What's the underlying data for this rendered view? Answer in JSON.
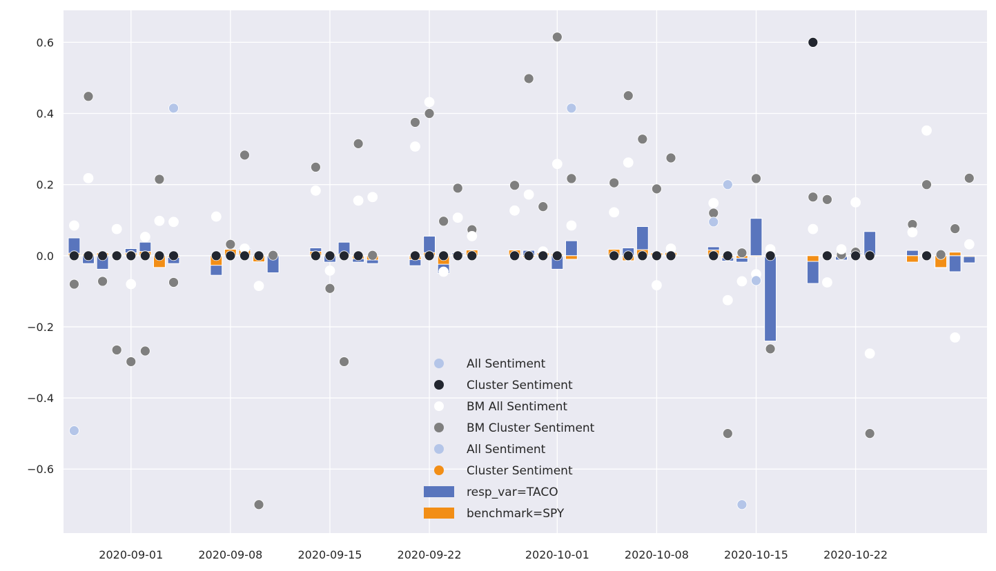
{
  "chart_data": {
    "type": "bar+scatter",
    "title": "",
    "xlabel": "",
    "ylabel": "",
    "ylim": [
      -0.78,
      0.69
    ],
    "xlim": [
      "2020-08-27T06:00",
      "2020-10-31T06:00"
    ],
    "grid": true,
    "legend_position": "lower-center",
    "y_ticks": [
      -0.6,
      -0.4,
      -0.2,
      0.0,
      0.2,
      0.4,
      0.6
    ],
    "y_tick_labels": [
      "−0.6",
      "−0.4",
      "−0.2",
      "0.0",
      "0.2",
      "0.4",
      "0.6"
    ],
    "x_ticks": [
      "2020-09-01",
      "2020-09-08",
      "2020-09-15",
      "2020-09-22",
      "2020-10-01",
      "2020-10-08",
      "2020-10-15",
      "2020-10-22"
    ],
    "colors": {
      "background": "#eaeaf2",
      "grid": "#ffffff",
      "all_sentiment": "#b4c5e8",
      "cluster_sentiment": "#22262f",
      "bm_all_sentiment": "#ffffff",
      "bm_cluster_sentiment": "#7f7f7f",
      "cluster_sentiment_2": "#f28e16",
      "taco_bar": "#5975bd",
      "spy_bar": "#f28e16"
    },
    "legend": [
      {
        "label": "All Sentiment",
        "kind": "dot",
        "color": "#b4c5e8"
      },
      {
        "label": "Cluster Sentiment",
        "kind": "dot",
        "color": "#22262f"
      },
      {
        "label": "BM All Sentiment",
        "kind": "dot",
        "color": "#ffffff"
      },
      {
        "label": "BM Cluster Sentiment",
        "kind": "dot",
        "color": "#7f7f7f"
      },
      {
        "label": "All Sentiment",
        "kind": "dot",
        "color": "#b4c5e8"
      },
      {
        "label": "Cluster Sentiment",
        "kind": "dot",
        "color": "#f28e16"
      },
      {
        "label": "resp_var=TACO",
        "kind": "bar",
        "color": "#5975bd"
      },
      {
        "label": "benchmark=SPY",
        "kind": "bar",
        "color": "#f28e16"
      }
    ],
    "bars_taco": [
      {
        "x": "2020-08-28",
        "y": 0.05
      },
      {
        "x": "2020-08-29",
        "y": -0.022
      },
      {
        "x": "2020-08-30",
        "y": -0.038
      },
      {
        "x": "2020-08-31",
        "y": 0.002
      },
      {
        "x": "2020-09-01",
        "y": 0.02
      },
      {
        "x": "2020-09-02",
        "y": 0.038
      },
      {
        "x": "2020-09-03",
        "y": 0.002
      },
      {
        "x": "2020-09-04",
        "y": -0.022
      },
      {
        "x": "2020-09-07",
        "y": -0.055
      },
      {
        "x": "2020-09-08",
        "y": 0.002
      },
      {
        "x": "2020-09-09",
        "y": 0.02
      },
      {
        "x": "2020-09-10",
        "y": -0.002
      },
      {
        "x": "2020-09-11",
        "y": -0.048
      },
      {
        "x": "2020-09-14",
        "y": 0.022
      },
      {
        "x": "2020-09-15",
        "y": -0.018
      },
      {
        "x": "2020-09-16",
        "y": 0.038
      },
      {
        "x": "2020-09-17",
        "y": -0.018
      },
      {
        "x": "2020-09-18",
        "y": -0.022
      },
      {
        "x": "2020-09-21",
        "y": -0.028
      },
      {
        "x": "2020-09-22",
        "y": 0.055
      },
      {
        "x": "2020-09-23",
        "y": -0.05
      },
      {
        "x": "2020-09-24",
        "y": 0.008
      },
      {
        "x": "2020-09-25",
        "y": 0.003
      },
      {
        "x": "2020-09-28",
        "y": 0.002
      },
      {
        "x": "2020-09-29",
        "y": 0.015
      },
      {
        "x": "2020-09-30",
        "y": 0.003
      },
      {
        "x": "2020-10-01",
        "y": -0.038
      },
      {
        "x": "2020-10-02",
        "y": 0.042
      },
      {
        "x": "2020-10-05",
        "y": 0.002
      },
      {
        "x": "2020-10-06",
        "y": 0.022
      },
      {
        "x": "2020-10-07",
        "y": 0.082
      },
      {
        "x": "2020-10-08",
        "y": 0.002
      },
      {
        "x": "2020-10-09",
        "y": 0.002
      },
      {
        "x": "2020-10-12",
        "y": 0.025
      },
      {
        "x": "2020-10-13",
        "y": -0.015
      },
      {
        "x": "2020-10-14",
        "y": -0.018
      },
      {
        "x": "2020-10-15",
        "y": 0.105
      },
      {
        "x": "2020-10-16",
        "y": -0.24
      },
      {
        "x": "2020-10-19",
        "y": -0.078
      },
      {
        "x": "2020-10-20",
        "y": 0.002
      },
      {
        "x": "2020-10-21",
        "y": -0.012
      },
      {
        "x": "2020-10-22",
        "y": 0.008
      },
      {
        "x": "2020-10-23",
        "y": 0.068
      },
      {
        "x": "2020-10-26",
        "y": 0.015
      },
      {
        "x": "2020-10-27",
        "y": 0.002
      },
      {
        "x": "2020-10-28",
        "y": -0.035
      },
      {
        "x": "2020-10-29",
        "y": -0.045
      },
      {
        "x": "2020-10-30",
        "y": -0.02
      }
    ],
    "bars_spy": [
      {
        "x": "2020-08-28",
        "y": 0.007
      },
      {
        "x": "2020-08-29",
        "y": 0.004
      },
      {
        "x": "2020-08-30",
        "y": 0.008
      },
      {
        "x": "2020-08-31",
        "y": 0.003
      },
      {
        "x": "2020-09-01",
        "y": 0.008
      },
      {
        "x": "2020-09-02",
        "y": 0.012
      },
      {
        "x": "2020-09-03",
        "y": -0.033
      },
      {
        "x": "2020-09-04",
        "y": -0.005
      },
      {
        "x": "2020-09-07",
        "y": -0.027
      },
      {
        "x": "2020-09-08",
        "y": 0.018
      },
      {
        "x": "2020-09-09",
        "y": 0.016
      },
      {
        "x": "2020-09-10",
        "y": -0.017
      },
      {
        "x": "2020-09-11",
        "y": 0.003
      },
      {
        "x": "2020-09-14",
        "y": 0.012
      },
      {
        "x": "2020-09-15",
        "y": 0.004
      },
      {
        "x": "2020-09-16",
        "y": 0.004
      },
      {
        "x": "2020-09-17",
        "y": -0.009
      },
      {
        "x": "2020-09-18",
        "y": -0.012
      },
      {
        "x": "2020-09-21",
        "y": -0.011
      },
      {
        "x": "2020-09-22",
        "y": 0.009
      },
      {
        "x": "2020-09-23",
        "y": -0.024
      },
      {
        "x": "2020-09-24",
        "y": 0.003
      },
      {
        "x": "2020-09-25",
        "y": 0.016
      },
      {
        "x": "2020-09-28",
        "y": 0.016
      },
      {
        "x": "2020-09-29",
        "y": -0.005
      },
      {
        "x": "2020-09-30",
        "y": 0.008
      },
      {
        "x": "2020-10-01",
        "y": 0.005
      },
      {
        "x": "2020-10-02",
        "y": -0.01
      },
      {
        "x": "2020-10-05",
        "y": 0.018
      },
      {
        "x": "2020-10-06",
        "y": -0.014
      },
      {
        "x": "2020-10-07",
        "y": 0.017
      },
      {
        "x": "2020-10-08",
        "y": 0.008
      },
      {
        "x": "2020-10-09",
        "y": 0.009
      },
      {
        "x": "2020-10-12",
        "y": 0.016
      },
      {
        "x": "2020-10-13",
        "y": -0.006
      },
      {
        "x": "2020-10-14",
        "y": -0.007
      },
      {
        "x": "2020-10-15",
        "y": 0.0
      },
      {
        "x": "2020-10-16",
        "y": 0.0
      },
      {
        "x": "2020-10-19",
        "y": -0.016
      },
      {
        "x": "2020-10-20",
        "y": 0.0
      },
      {
        "x": "2020-10-21",
        "y": 0.0
      },
      {
        "x": "2020-10-22",
        "y": 0.003
      },
      {
        "x": "2020-10-23",
        "y": 0.0
      },
      {
        "x": "2020-10-26",
        "y": -0.018
      },
      {
        "x": "2020-10-27",
        "y": 0.0
      },
      {
        "x": "2020-10-28",
        "y": -0.033
      },
      {
        "x": "2020-10-29",
        "y": 0.01
      },
      {
        "x": "2020-10-30",
        "y": 0.0
      }
    ],
    "all_sentiment": [
      {
        "x": "2020-08-28",
        "y": -0.492
      },
      {
        "x": "2020-09-04",
        "y": 0.415
      },
      {
        "x": "2020-10-02",
        "y": 0.415
      },
      {
        "x": "2020-10-12",
        "y": 0.095
      },
      {
        "x": "2020-10-13",
        "y": 0.2
      },
      {
        "x": "2020-10-14",
        "y": -0.7
      },
      {
        "x": "2020-10-15",
        "y": -0.07
      }
    ],
    "cluster_sentiment": [
      {
        "x": "2020-08-28",
        "y": 0.0
      },
      {
        "x": "2020-08-29",
        "y": 0.0
      },
      {
        "x": "2020-08-30",
        "y": 0.0
      },
      {
        "x": "2020-08-31",
        "y": 0.0
      },
      {
        "x": "2020-09-01",
        "y": 0.0
      },
      {
        "x": "2020-09-02",
        "y": 0.0
      },
      {
        "x": "2020-09-03",
        "y": 0.0
      },
      {
        "x": "2020-09-04",
        "y": 0.0
      },
      {
        "x": "2020-09-07",
        "y": 0.0
      },
      {
        "x": "2020-09-08",
        "y": 0.0
      },
      {
        "x": "2020-09-09",
        "y": 0.0
      },
      {
        "x": "2020-09-10",
        "y": 0.0
      },
      {
        "x": "2020-09-14",
        "y": 0.0
      },
      {
        "x": "2020-09-15",
        "y": 0.0
      },
      {
        "x": "2020-09-16",
        "y": 0.0
      },
      {
        "x": "2020-09-17",
        "y": 0.0
      },
      {
        "x": "2020-09-21",
        "y": 0.0
      },
      {
        "x": "2020-09-22",
        "y": 0.0
      },
      {
        "x": "2020-09-23",
        "y": 0.0
      },
      {
        "x": "2020-09-24",
        "y": 0.0
      },
      {
        "x": "2020-09-25",
        "y": 0.0
      },
      {
        "x": "2020-09-28",
        "y": 0.0
      },
      {
        "x": "2020-09-29",
        "y": 0.0
      },
      {
        "x": "2020-09-30",
        "y": 0.0
      },
      {
        "x": "2020-10-01",
        "y": 0.0
      },
      {
        "x": "2020-10-05",
        "y": 0.0
      },
      {
        "x": "2020-10-06",
        "y": 0.0
      },
      {
        "x": "2020-10-07",
        "y": 0.0
      },
      {
        "x": "2020-10-08",
        "y": 0.0
      },
      {
        "x": "2020-10-09",
        "y": 0.0
      },
      {
        "x": "2020-10-12",
        "y": 0.0
      },
      {
        "x": "2020-10-13",
        "y": 0.0
      },
      {
        "x": "2020-10-16",
        "y": 0.0
      },
      {
        "x": "2020-10-19",
        "y": 0.6
      },
      {
        "x": "2020-10-20",
        "y": 0.0
      },
      {
        "x": "2020-10-22",
        "y": 0.0
      },
      {
        "x": "2020-10-23",
        "y": 0.0
      },
      {
        "x": "2020-10-27",
        "y": 0.0
      }
    ],
    "bm_all_sentiment": [
      {
        "x": "2020-08-28",
        "y": 0.085
      },
      {
        "x": "2020-08-29",
        "y": 0.218
      },
      {
        "x": "2020-08-31",
        "y": 0.075
      },
      {
        "x": "2020-09-01",
        "y": -0.08
      },
      {
        "x": "2020-09-02",
        "y": 0.053
      },
      {
        "x": "2020-09-03",
        "y": 0.098
      },
      {
        "x": "2020-09-04",
        "y": 0.095
      },
      {
        "x": "2020-09-07",
        "y": 0.11
      },
      {
        "x": "2020-09-09",
        "y": 0.02
      },
      {
        "x": "2020-09-10",
        "y": -0.085
      },
      {
        "x": "2020-09-14",
        "y": 0.183
      },
      {
        "x": "2020-09-15",
        "y": -0.042
      },
      {
        "x": "2020-09-17",
        "y": 0.155
      },
      {
        "x": "2020-09-18",
        "y": 0.165
      },
      {
        "x": "2020-09-21",
        "y": 0.307
      },
      {
        "x": "2020-09-22",
        "y": 0.432
      },
      {
        "x": "2020-09-23",
        "y": -0.045
      },
      {
        "x": "2020-09-24",
        "y": 0.107
      },
      {
        "x": "2020-09-25",
        "y": 0.055
      },
      {
        "x": "2020-09-28",
        "y": 0.127
      },
      {
        "x": "2020-09-29",
        "y": 0.172
      },
      {
        "x": "2020-09-30",
        "y": 0.012
      },
      {
        "x": "2020-10-01",
        "y": 0.258
      },
      {
        "x": "2020-10-02",
        "y": 0.085
      },
      {
        "x": "2020-10-05",
        "y": 0.122
      },
      {
        "x": "2020-10-06",
        "y": 0.262
      },
      {
        "x": "2020-10-08",
        "y": -0.083
      },
      {
        "x": "2020-10-09",
        "y": 0.02
      },
      {
        "x": "2020-10-12",
        "y": 0.148
      },
      {
        "x": "2020-10-13",
        "y": -0.125
      },
      {
        "x": "2020-10-14",
        "y": -0.072
      },
      {
        "x": "2020-10-15",
        "y": -0.052
      },
      {
        "x": "2020-10-16",
        "y": 0.018
      },
      {
        "x": "2020-10-19",
        "y": 0.075
      },
      {
        "x": "2020-10-20",
        "y": -0.075
      },
      {
        "x": "2020-10-21",
        "y": 0.018
      },
      {
        "x": "2020-10-23",
        "y": -0.275
      },
      {
        "x": "2020-10-22",
        "y": 0.15
      },
      {
        "x": "2020-10-26",
        "y": 0.066
      },
      {
        "x": "2020-10-27",
        "y": 0.352
      },
      {
        "x": "2020-10-29",
        "y": -0.23
      },
      {
        "x": "2020-10-30",
        "y": 0.032
      }
    ],
    "bm_cluster_sentiment": [
      {
        "x": "2020-08-28",
        "y": -0.08
      },
      {
        "x": "2020-08-29",
        "y": 0.448
      },
      {
        "x": "2020-08-30",
        "y": -0.072
      },
      {
        "x": "2020-08-31",
        "y": -0.265
      },
      {
        "x": "2020-09-01",
        "y": 0.001
      },
      {
        "x": "2020-09-01",
        "y": -0.298
      },
      {
        "x": "2020-09-02",
        "y": -0.268
      },
      {
        "x": "2020-09-03",
        "y": 0.215
      },
      {
        "x": "2020-09-04",
        "y": -0.075
      },
      {
        "x": "2020-09-08",
        "y": 0.032
      },
      {
        "x": "2020-09-09",
        "y": 0.283
      },
      {
        "x": "2020-09-10",
        "y": -0.7
      },
      {
        "x": "2020-09-11",
        "y": 0.001
      },
      {
        "x": "2020-09-14",
        "y": 0.249
      },
      {
        "x": "2020-09-15",
        "y": -0.092
      },
      {
        "x": "2020-09-16",
        "y": -0.298
      },
      {
        "x": "2020-09-17",
        "y": 0.315
      },
      {
        "x": "2020-09-18",
        "y": 0.001
      },
      {
        "x": "2020-09-21",
        "y": 0.375
      },
      {
        "x": "2020-09-22",
        "y": 0.4
      },
      {
        "x": "2020-09-23",
        "y": 0.097
      },
      {
        "x": "2020-09-24",
        "y": 0.19
      },
      {
        "x": "2020-09-25",
        "y": 0.073
      },
      {
        "x": "2020-09-28",
        "y": 0.198
      },
      {
        "x": "2020-09-29",
        "y": 0.498
      },
      {
        "x": "2020-09-30",
        "y": 0.138
      },
      {
        "x": "2020-10-01",
        "y": 0.615
      },
      {
        "x": "2020-10-02",
        "y": 0.217
      },
      {
        "x": "2020-10-05",
        "y": 0.205
      },
      {
        "x": "2020-10-06",
        "y": 0.45
      },
      {
        "x": "2020-10-07",
        "y": 0.328
      },
      {
        "x": "2020-10-08",
        "y": 0.188
      },
      {
        "x": "2020-10-09",
        "y": 0.275
      },
      {
        "x": "2020-10-12",
        "y": 0.12
      },
      {
        "x": "2020-10-13",
        "y": -0.5
      },
      {
        "x": "2020-10-14",
        "y": 0.008
      },
      {
        "x": "2020-10-15",
        "y": 0.217
      },
      {
        "x": "2020-10-16",
        "y": -0.262
      },
      {
        "x": "2020-10-19",
        "y": 0.165
      },
      {
        "x": "2020-10-20",
        "y": 0.158
      },
      {
        "x": "2020-10-21",
        "y": 0.003
      },
      {
        "x": "2020-10-22",
        "y": 0.01
      },
      {
        "x": "2020-10-23",
        "y": -0.5
      },
      {
        "x": "2020-10-26",
        "y": 0.088
      },
      {
        "x": "2020-10-27",
        "y": 0.2
      },
      {
        "x": "2020-10-28",
        "y": 0.003
      },
      {
        "x": "2020-10-29",
        "y": 0.076
      },
      {
        "x": "2020-10-30",
        "y": 0.218
      }
    ]
  }
}
